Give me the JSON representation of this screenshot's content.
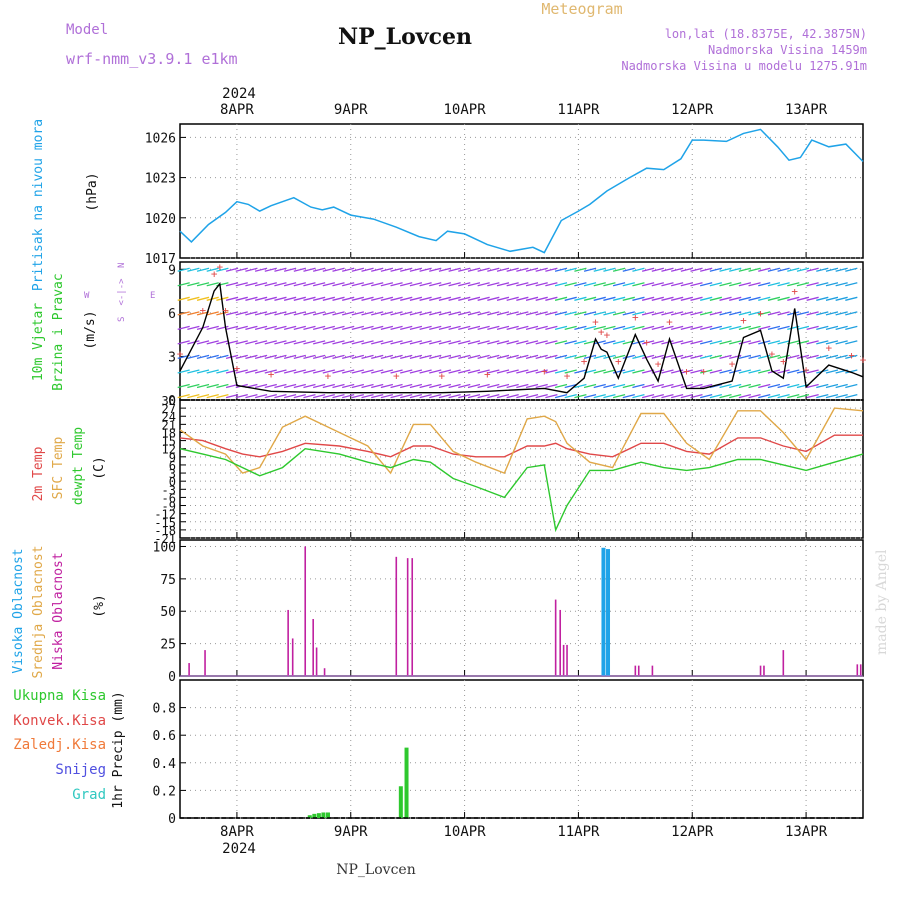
{
  "header": {
    "model_label": "Model",
    "model_name": "wrf-nmm_v3.9.1  e1km",
    "station": "NP_Lovcen",
    "meteogram": "Meteogram",
    "coords": "lon,lat (18.8375E, 42.3875N)",
    "elevation": "Nadmorska Visina 1459m",
    "model_elevation": "Nadmorska Visina u modelu 1275.91m",
    "footer_station": "NP_Lovcen",
    "watermark": "made by Angel"
  },
  "time_axis": {
    "year_top": "2024",
    "year_bottom": "2024",
    "days": [
      "8APR",
      "9APR",
      "10APR",
      "11APR",
      "12APR",
      "13APR"
    ]
  },
  "panel_labels": {
    "pressure": {
      "name": "Pritisak na nivou mora",
      "unit": "(hPa)"
    },
    "wind": {
      "name_1": "10m Vjetar",
      "name_2": "Brzina i Pravac",
      "unit": "(m/s)",
      "compass_n": "N",
      "compass_s": "S",
      "compass_w": "W",
      "compass_e": "E",
      "compass_arrow": "<-|->"
    },
    "temp": {
      "t2m": "2m Temp",
      "sfc": "SFC Temp",
      "dewpt": "dewpt Temp",
      "unit": "(C)"
    },
    "cloud": {
      "high": "Visoka Oblacnost",
      "mid": "Srednja Oblacnost",
      "low": "Niska Oblacnost",
      "unit": "(%)"
    },
    "precip": {
      "total": "Ukupna Kisa",
      "conv": "Konvek.Kisa",
      "frozen": "Zaledj.Kisa",
      "snow": "Snijeg",
      "hail": "Grad",
      "unit": "1hr Precip (mm)"
    }
  },
  "colors": {
    "pressure": "#1fa3e8",
    "t2m": "#e04848",
    "sfc": "#e0a848",
    "dewpt": "#2ec82e",
    "cloud_low": "#c020a0",
    "cloud_high": "#1fa3e8",
    "precip": "#2ec82e",
    "wind_purple": "#a040e0",
    "accent_label": "#b070d8",
    "meteogram": "#e0b870"
  },
  "chart_data": [
    {
      "type": "line",
      "panel": "pressure",
      "ylabel": "(hPa)",
      "ylim": [
        1017,
        1027
      ],
      "yticks": [
        1017,
        1020,
        1023,
        1026
      ],
      "x_days": [
        7.5,
        7.6,
        7.75,
        7.9,
        8.0,
        8.1,
        8.2,
        8.3,
        8.5,
        8.65,
        8.75,
        8.85,
        9.0,
        9.2,
        9.4,
        9.6,
        9.75,
        9.85,
        10.0,
        10.2,
        10.4,
        10.6,
        10.7,
        10.85,
        11.0,
        11.1,
        11.25,
        11.45,
        11.6,
        11.75,
        11.9,
        12.0,
        12.1,
        12.3,
        12.45,
        12.6,
        12.75,
        12.85,
        12.95,
        13.05,
        13.2,
        13.35,
        13.5
      ],
      "series": [
        {
          "values": [
            1019.0,
            1018.2,
            1019.5,
            1020.4,
            1021.2,
            1021.0,
            1020.5,
            1020.9,
            1021.5,
            1020.8,
            1020.6,
            1020.8,
            1020.2,
            1019.9,
            1019.3,
            1018.6,
            1018.3,
            1019.0,
            1018.8,
            1018.0,
            1017.5,
            1017.8,
            1017.4,
            1019.8,
            1020.5,
            1021.0,
            1022.0,
            1023.0,
            1023.7,
            1023.6,
            1024.4,
            1025.8,
            1025.8,
            1025.7,
            1026.3,
            1026.6,
            1025.3,
            1024.3,
            1024.5,
            1025.8,
            1025.3,
            1025.5,
            1024.2
          ]
        }
      ]
    },
    {
      "type": "line",
      "panel": "wind",
      "ylabel": "(m/s)",
      "ylim": [
        0,
        9.5
      ],
      "yticks": [
        0,
        3,
        6,
        9
      ],
      "x_days": [
        7.5,
        7.7,
        7.8,
        7.85,
        7.9,
        8.0,
        8.3,
        8.8,
        9.4,
        9.8,
        10.2,
        10.7,
        10.9,
        11.05,
        11.15,
        11.2,
        11.25,
        11.35,
        11.5,
        11.6,
        11.7,
        11.8,
        11.95,
        12.1,
        12.35,
        12.45,
        12.6,
        12.7,
        12.8,
        12.9,
        13.0,
        13.2,
        13.4,
        13.5
      ],
      "series": [
        {
          "name": "10m Vjetar",
          "values": [
            2.0,
            5.0,
            7.5,
            8.0,
            5.0,
            1.0,
            0.6,
            0.5,
            0.5,
            0.5,
            0.6,
            0.8,
            0.5,
            1.5,
            4.2,
            3.5,
            3.3,
            1.5,
            4.5,
            2.8,
            1.3,
            4.2,
            0.8,
            0.8,
            1.3,
            4.3,
            4.8,
            2.0,
            1.5,
            6.3,
            0.9,
            2.4,
            1.9,
            1.6
          ]
        }
      ]
    },
    {
      "type": "line",
      "panel": "temperature",
      "ylabel": "(C)",
      "ylim": [
        -21,
        30
      ],
      "yticks": [
        -21,
        -18,
        -15,
        -12,
        -9,
        -6,
        -3,
        0,
        3,
        6,
        9,
        12,
        15,
        18,
        21,
        24,
        27,
        30
      ],
      "x_days": [
        7.5,
        7.7,
        7.9,
        8.05,
        8.2,
        8.4,
        8.6,
        8.9,
        9.15,
        9.35,
        9.55,
        9.7,
        9.9,
        10.1,
        10.35,
        10.55,
        10.7,
        10.8,
        10.9,
        11.1,
        11.3,
        11.55,
        11.75,
        11.95,
        12.15,
        12.4,
        12.6,
        12.8,
        13.0,
        13.25,
        13.5
      ],
      "series": [
        {
          "name": "2m Temp",
          "values": [
            16,
            15,
            12,
            10,
            9,
            11,
            14,
            13,
            11,
            9,
            13,
            13,
            10,
            9,
            9,
            13,
            13,
            14,
            12,
            10,
            9,
            14,
            14,
            11,
            10,
            16,
            16,
            13,
            11,
            17,
            17
          ]
        },
        {
          "name": "SFC Temp",
          "values": [
            19,
            13,
            10,
            3,
            5,
            20,
            24,
            18,
            13,
            3,
            21,
            21,
            11,
            7,
            3,
            23,
            24,
            22,
            14,
            7,
            5,
            25,
            25,
            14,
            8,
            26,
            26,
            18,
            8,
            27,
            26
          ]
        },
        {
          "name": "dewpt Temp",
          "values": [
            12,
            10,
            8,
            5,
            2,
            5,
            12,
            10,
            7,
            5,
            8,
            7,
            1,
            -2,
            -6,
            5,
            6,
            -18,
            -9,
            4,
            4,
            7,
            5,
            4,
            5,
            8,
            8,
            6,
            4,
            7,
            10
          ]
        }
      ]
    },
    {
      "type": "bar",
      "panel": "cloud",
      "ylabel": "(%)",
      "ylim": [
        0,
        100
      ],
      "yticks": [
        0,
        25,
        50,
        75,
        100
      ],
      "series": [
        {
          "name": "Niska Oblacnost",
          "x_days": [
            7.58,
            7.72,
            8.45,
            8.49,
            8.6,
            8.67,
            8.7,
            8.77,
            9.4,
            9.5,
            9.54,
            10.8,
            10.84,
            10.87,
            10.9,
            11.5,
            11.53,
            11.65,
            12.6,
            12.63,
            12.8,
            13.45,
            13.48
          ],
          "values": [
            10,
            20,
            51,
            29,
            100,
            44,
            22,
            6,
            92,
            91,
            91,
            59,
            51,
            24,
            24,
            8,
            8,
            8,
            8,
            8,
            20,
            9,
            9
          ]
        },
        {
          "name": "Visoka Oblacnost",
          "x_days": [
            11.22,
            11.26
          ],
          "values": [
            99,
            98
          ]
        }
      ]
    },
    {
      "type": "bar",
      "panel": "precipitation",
      "ylabel": "1hr Precip (mm)",
      "ylim": [
        0,
        1.0
      ],
      "yticks": [
        0,
        0.2,
        0.4,
        0.6,
        0.8
      ],
      "series": [
        {
          "name": "Ukupna Kisa",
          "x_days": [
            8.64,
            8.68,
            8.72,
            8.76,
            8.8,
            9.44,
            9.49
          ],
          "values": [
            0.02,
            0.03,
            0.035,
            0.04,
            0.04,
            0.23,
            0.51
          ]
        }
      ]
    }
  ]
}
